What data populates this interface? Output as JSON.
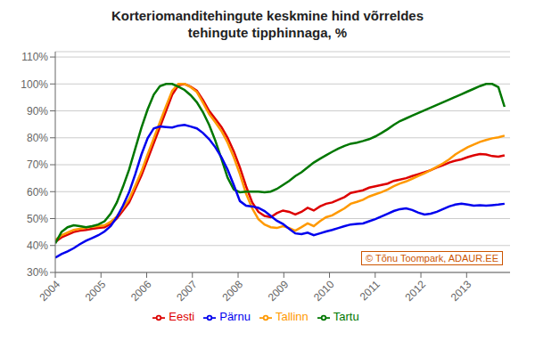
{
  "chart_data": {
    "type": "line",
    "title": "Korteriomanditehingute keskmine hind võrreldes\ntehingute tipphinnaga, %",
    "annotations": [
      "© Tõnu Toompark, ADAUR.EE"
    ],
    "x": [
      2004,
      2004.1347,
      2004.2693,
      2004.404,
      2004.5386,
      2004.6733,
      2004.8079,
      2004.9426,
      2005.0773,
      2005.2119,
      2005.3466,
      2005.4812,
      2005.6159,
      2005.7505,
      2005.8852,
      2006.0199,
      2006.1545,
      2006.2892,
      2006.4238,
      2006.5585,
      2006.6932,
      2006.8278,
      2006.9625,
      2007.0971,
      2007.2318,
      2007.3664,
      2007.5011,
      2007.6358,
      2007.7704,
      2007.9051,
      2008.0397,
      2008.1744,
      2008.309,
      2008.4437,
      2008.5784,
      2008.713,
      2008.8477,
      2008.9823,
      2009.117,
      2009.2516,
      2009.3863,
      2009.521,
      2009.6556,
      2009.7903,
      2009.9249,
      2010.0596,
      2010.1942,
      2010.3289,
      2010.4636,
      2010.5982,
      2010.7329,
      2010.8675,
      2011.0022,
      2011.1368,
      2011.2715,
      2011.4062,
      2011.5408,
      2011.6755,
      2011.8101,
      2011.9448,
      2012.0795,
      2012.2141,
      2012.3488,
      2012.4834,
      2012.6181,
      2012.7527,
      2012.8874,
      2013.0221,
      2013.1567,
      2013.2914,
      2013.426,
      2013.5607,
      2013.6953,
      2013.83
    ],
    "xlim": [
      2004,
      2013.95
    ],
    "xticks": [
      2004,
      2005,
      2006,
      2007,
      2008,
      2009,
      2010,
      2011,
      2012,
      2013
    ],
    "ylim": [
      0.3,
      1.12
    ],
    "yticks": [
      {
        "value": 0.3,
        "label": "30%"
      },
      {
        "value": 0.4,
        "label": "40%"
      },
      {
        "value": 0.5,
        "label": "50%"
      },
      {
        "value": 0.6,
        "label": "60%"
      },
      {
        "value": 0.7,
        "label": "70%"
      },
      {
        "value": 0.8,
        "label": "80%"
      },
      {
        "value": 0.9,
        "label": "90%"
      },
      {
        "value": 1.0,
        "label": "100%"
      },
      {
        "value": 1.1,
        "label": "110%"
      }
    ],
    "grid": true,
    "legend": "bottom",
    "series": [
      {
        "name": "Eesti",
        "color": "#dd0000",
        "values": [
          0.413,
          0.43,
          0.44,
          0.45,
          0.455,
          0.458,
          0.462,
          0.465,
          0.468,
          0.48,
          0.5,
          0.53,
          0.56,
          0.61,
          0.66,
          0.72,
          0.78,
          0.84,
          0.9,
          0.96,
          0.995,
          1.0,
          0.99,
          0.975,
          0.94,
          0.9,
          0.87,
          0.84,
          0.8,
          0.75,
          0.69,
          0.62,
          0.56,
          0.525,
          0.51,
          0.505,
          0.52,
          0.53,
          0.525,
          0.515,
          0.525,
          0.54,
          0.53,
          0.545,
          0.555,
          0.56,
          0.57,
          0.58,
          0.595,
          0.6,
          0.605,
          0.615,
          0.62,
          0.625,
          0.63,
          0.64,
          0.645,
          0.65,
          0.658,
          0.665,
          0.672,
          0.68,
          0.69,
          0.698,
          0.708,
          0.715,
          0.72,
          0.728,
          0.735,
          0.74,
          0.738,
          0.732,
          0.73,
          0.735
        ]
      },
      {
        "name": "Tallinn",
        "color": "#ff9900",
        "values": [
          0.42,
          0.438,
          0.448,
          0.458,
          0.462,
          0.466,
          0.47,
          0.472,
          0.475,
          0.488,
          0.508,
          0.54,
          0.572,
          0.622,
          0.675,
          0.738,
          0.798,
          0.858,
          0.918,
          0.975,
          1.0,
          1.0,
          0.988,
          0.97,
          0.93,
          0.888,
          0.858,
          0.825,
          0.782,
          0.728,
          0.665,
          0.592,
          0.538,
          0.498,
          0.478,
          0.468,
          0.465,
          0.472,
          0.465,
          0.455,
          0.468,
          0.482,
          0.472,
          0.49,
          0.505,
          0.512,
          0.525,
          0.538,
          0.555,
          0.562,
          0.57,
          0.582,
          0.59,
          0.598,
          0.608,
          0.62,
          0.63,
          0.638,
          0.648,
          0.658,
          0.668,
          0.68,
          0.692,
          0.705,
          0.72,
          0.738,
          0.752,
          0.765,
          0.775,
          0.785,
          0.792,
          0.798,
          0.802,
          0.808
        ]
      },
      {
        "name": "Tartu",
        "color": "#007700",
        "values": [
          0.408,
          0.45,
          0.468,
          0.475,
          0.472,
          0.468,
          0.472,
          0.478,
          0.49,
          0.518,
          0.56,
          0.618,
          0.682,
          0.76,
          0.838,
          0.905,
          0.96,
          0.992,
          1.0,
          1.0,
          0.99,
          0.978,
          0.958,
          0.932,
          0.895,
          0.848,
          0.79,
          0.722,
          0.652,
          0.608,
          0.598,
          0.6,
          0.6,
          0.6,
          0.598,
          0.6,
          0.61,
          0.625,
          0.64,
          0.658,
          0.672,
          0.69,
          0.708,
          0.722,
          0.735,
          0.748,
          0.76,
          0.77,
          0.778,
          0.782,
          0.788,
          0.795,
          0.805,
          0.818,
          0.832,
          0.848,
          0.862,
          0.872,
          0.882,
          0.892,
          0.902,
          0.912,
          0.922,
          0.932,
          0.942,
          0.952,
          0.962,
          0.972,
          0.982,
          0.992,
          1.0,
          1.0,
          0.988,
          0.915
        ]
      },
      {
        "name": "Pärnu",
        "color": "#0000ee",
        "values": [
          0.355,
          0.368,
          0.378,
          0.39,
          0.405,
          0.418,
          0.428,
          0.438,
          0.452,
          0.472,
          0.505,
          0.548,
          0.598,
          0.665,
          0.738,
          0.798,
          0.835,
          0.842,
          0.84,
          0.838,
          0.845,
          0.848,
          0.842,
          0.835,
          0.818,
          0.795,
          0.765,
          0.728,
          0.682,
          0.625,
          0.565,
          0.548,
          0.545,
          0.54,
          0.528,
          0.51,
          0.492,
          0.48,
          0.462,
          0.445,
          0.442,
          0.448,
          0.438,
          0.445,
          0.452,
          0.458,
          0.465,
          0.472,
          0.478,
          0.48,
          0.482,
          0.49,
          0.498,
          0.508,
          0.518,
          0.528,
          0.535,
          0.538,
          0.532,
          0.522,
          0.515,
          0.518,
          0.525,
          0.535,
          0.545,
          0.552,
          0.555,
          0.552,
          0.548,
          0.55,
          0.548,
          0.55,
          0.552,
          0.555
        ]
      }
    ]
  }
}
